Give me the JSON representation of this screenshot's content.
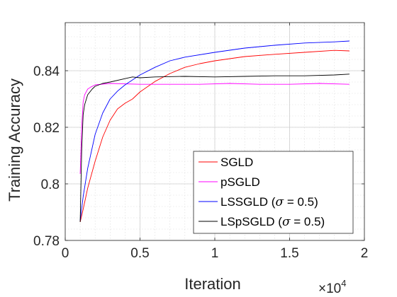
{
  "chart_data": {
    "type": "line",
    "title": "",
    "xlabel": "Iteration",
    "ylabel": "Training Accuracy",
    "x_exponent_label": "×10",
    "x_exponent_power": "4",
    "xlim": [
      0,
      2
    ],
    "ylim": [
      0.78,
      0.857
    ],
    "xticks": [
      0,
      0.5,
      1,
      1.5,
      2
    ],
    "xtick_labels": [
      "0",
      "0.5",
      "1",
      "1.5",
      "2"
    ],
    "yticks": [
      0.78,
      0.8,
      0.82,
      0.84
    ],
    "ytick_labels": [
      "0.78",
      "0.8",
      "0.82",
      "0.84"
    ],
    "x_minor_step": 0.1,
    "y_minor_step": 0.004,
    "grid": "on (major and minor)",
    "legend_location": "bottom-right",
    "x_units": "iterations × 10^4",
    "series": [
      {
        "name": "SGLD",
        "color": "#ff0000",
        "x": [
          0.1,
          0.12,
          0.15,
          0.2,
          0.25,
          0.3,
          0.35,
          0.4,
          0.45,
          0.5,
          0.6,
          0.7,
          0.8,
          0.9,
          1.0,
          1.2,
          1.4,
          1.6,
          1.8,
          1.9
        ],
        "y": [
          0.7865,
          0.791,
          0.7985,
          0.808,
          0.8165,
          0.8225,
          0.8265,
          0.8285,
          0.83,
          0.8325,
          0.8362,
          0.839,
          0.8412,
          0.8425,
          0.8435,
          0.845,
          0.8458,
          0.8465,
          0.8472,
          0.847
        ]
      },
      {
        "name": "pSGLD",
        "color": "#ff00ff",
        "x": [
          0.1,
          0.11,
          0.12,
          0.13,
          0.15,
          0.17,
          0.2,
          0.3,
          0.5,
          0.7,
          0.9,
          1.1,
          1.3,
          1.5,
          1.7,
          1.9
        ],
        "y": [
          0.8035,
          0.82,
          0.829,
          0.8315,
          0.8335,
          0.8342,
          0.835,
          0.8355,
          0.8352,
          0.8352,
          0.8352,
          0.8355,
          0.8352,
          0.8352,
          0.8355,
          0.8352
        ]
      },
      {
        "name": "LSSGLD (σ = 0.5)",
        "color": "#0000ff",
        "x": [
          0.1,
          0.12,
          0.15,
          0.2,
          0.25,
          0.3,
          0.35,
          0.4,
          0.5,
          0.6,
          0.7,
          0.8,
          1.0,
          1.2,
          1.4,
          1.6,
          1.8,
          1.9
        ],
        "y": [
          0.787,
          0.7955,
          0.8055,
          0.8175,
          0.825,
          0.83,
          0.8328,
          0.835,
          0.8385,
          0.8412,
          0.8435,
          0.8448,
          0.8465,
          0.848,
          0.849,
          0.8498,
          0.8502,
          0.8505
        ]
      },
      {
        "name": "LSpSGLD (σ = 0.5)",
        "color": "#000000",
        "x": [
          0.1,
          0.11,
          0.12,
          0.13,
          0.15,
          0.18,
          0.2,
          0.25,
          0.3,
          0.4,
          0.45,
          0.5,
          0.6,
          0.8,
          1.0,
          1.2,
          1.4,
          1.6,
          1.8,
          1.9
        ],
        "y": [
          0.7865,
          0.812,
          0.8245,
          0.828,
          0.8315,
          0.8335,
          0.8345,
          0.8355,
          0.836,
          0.8372,
          0.8378,
          0.8375,
          0.8378,
          0.838,
          0.8378,
          0.838,
          0.8382,
          0.8382,
          0.8385,
          0.8388
        ]
      }
    ],
    "legend": {
      "entries": [
        {
          "base": "SGLD",
          "sigma": false,
          "color": "#ff0000"
        },
        {
          "base": "pSGLD",
          "sigma": false,
          "color": "#ff00ff"
        },
        {
          "base": "LSSGLD (",
          "sigma": true,
          "after": " = 0.5)",
          "color": "#0000ff"
        },
        {
          "base": "LSpSGLD (",
          "sigma": true,
          "after": " = 0.5)",
          "color": "#000000"
        }
      ],
      "sigma_symbol": "σ"
    }
  }
}
